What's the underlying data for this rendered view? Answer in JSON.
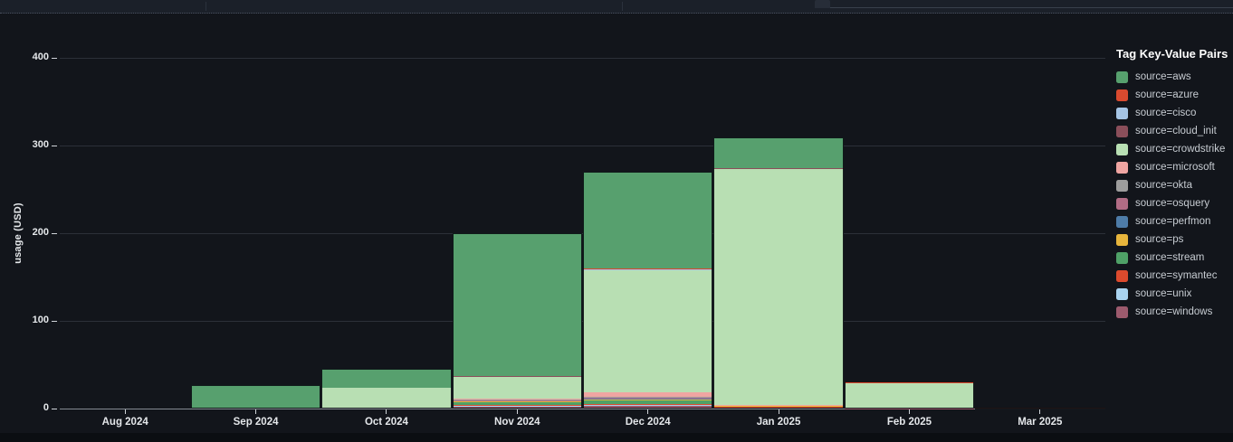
{
  "ui": {
    "panel_bg": "#12151b",
    "chrome_bg": "#1b2029",
    "axis_text": "#e4e7ea",
    "legend_text": "#c7ccd2",
    "grid_color": "#2c3038",
    "baseline_color": "#848a92",
    "tick_color": "#cfd3d8"
  },
  "chart_data": {
    "type": "bar",
    "stacked": true,
    "title": "",
    "xlabel": "",
    "ylabel": "usage (USD)",
    "categories": [
      "Aug 2024",
      "Sep 2024",
      "Oct 2024",
      "Nov 2024",
      "Dec 2024",
      "Jan 2025",
      "Feb 2025",
      "Mar 2025"
    ],
    "yticks": [
      0,
      100,
      200,
      300,
      400
    ],
    "ylim": [
      0,
      400
    ],
    "grid": true,
    "stack_order": "first series renders on top of stack",
    "legend": {
      "title": "Tag Key-Value Pairs",
      "position": "right"
    },
    "series": [
      {
        "name": "source=aws",
        "color": "#57a06e",
        "values": [
          0,
          27,
          21,
          162,
          111,
          35,
          0,
          0
        ]
      },
      {
        "name": "source=azure",
        "color": "#d94a2f",
        "values": [
          0,
          0,
          0,
          0,
          0.5,
          0,
          1.5,
          1.5
        ]
      },
      {
        "name": "source=cisco",
        "color": "#a5c4e4",
        "values": [
          0,
          0,
          0,
          0,
          0.5,
          0,
          0,
          0
        ]
      },
      {
        "name": "source=cloud_init",
        "color": "#8a4e5a",
        "values": [
          0,
          0,
          0,
          0.5,
          1,
          0.5,
          0,
          0
        ]
      },
      {
        "name": "source=crowdstrike",
        "color": "#b8dfb3",
        "values": [
          0,
          0,
          24,
          26,
          139,
          269,
          28.5,
          0
        ]
      },
      {
        "name": "source=microsoft",
        "color": "#efa5a2",
        "values": [
          0,
          0,
          0,
          1,
          5,
          0.5,
          0,
          0
        ]
      },
      {
        "name": "source=okta",
        "color": "#9d9d9d",
        "values": [
          0,
          0,
          0,
          0.5,
          1,
          0,
          0,
          0
        ]
      },
      {
        "name": "source=osquery",
        "color": "#b16c85",
        "values": [
          0,
          0,
          0,
          0.5,
          1,
          0.5,
          0,
          0
        ]
      },
      {
        "name": "source=perfmon",
        "color": "#4e7ca8",
        "values": [
          0,
          0,
          0,
          0.5,
          1,
          0,
          0,
          0
        ]
      },
      {
        "name": "source=ps",
        "color": "#e7b53c",
        "values": [
          0,
          0,
          0,
          1.5,
          1,
          0.5,
          0,
          0
        ]
      },
      {
        "name": "source=stream",
        "color": "#4fa167",
        "values": [
          0,
          0,
          0,
          2.5,
          4,
          1,
          0,
          0
        ]
      },
      {
        "name": "source=symantec",
        "color": "#dc4a2d",
        "values": [
          0,
          0,
          0,
          1,
          1,
          0.5,
          0,
          0
        ]
      },
      {
        "name": "source=unix",
        "color": "#a9d3ef",
        "values": [
          0,
          0,
          0,
          0.5,
          0.5,
          0,
          0,
          0
        ]
      },
      {
        "name": "source=windows",
        "color": "#9c5a6d",
        "values": [
          0,
          0,
          0,
          3,
          4,
          1.5,
          0.5,
          0
        ]
      }
    ]
  }
}
